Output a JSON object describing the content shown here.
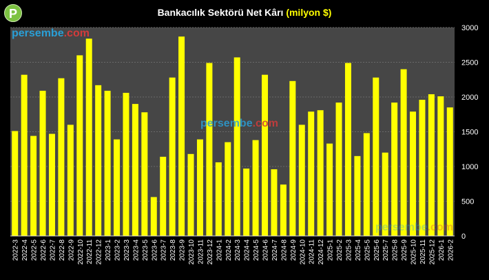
{
  "logo_letter": "P",
  "watermark": {
    "part1": "persembe",
    "part2": ".com"
  },
  "chart_data": {
    "type": "bar",
    "title": "Bankacılık Sektörü Net Kârı",
    "title_unit": "(milyon $)",
    "xlabel": "",
    "ylabel": "",
    "ylim": [
      0,
      3000
    ],
    "yticks": [
      0,
      500,
      1000,
      1500,
      2000,
      2500,
      3000
    ],
    "grid": true,
    "y_axis_position": "right",
    "bar_color": "#ffff00",
    "plot_background": "#464646",
    "categories": [
      "2022-3",
      "2022-4",
      "2022-5",
      "2022-6",
      "2022-7",
      "2022-8",
      "2022-9",
      "2022-10",
      "2022-11",
      "2022-12",
      "2023-1",
      "2023-2",
      "2023-3",
      "2023-4",
      "2023-5",
      "2023-6",
      "2023-7",
      "2023-8",
      "2023-9",
      "2023-10",
      "2023-11",
      "2023-12",
      "2024-1",
      "2024-2",
      "2024-3",
      "2024-4",
      "2024-5",
      "2024-6",
      "2024-7",
      "2024-8",
      "2024-9",
      "2024-10",
      "2024-11",
      "2024-12",
      "2025-1",
      "2025-2",
      "2025-3",
      "2025-4",
      "2025-5",
      "2025-6",
      "2025-7",
      "2025-8",
      "2025-9",
      "2025-10",
      "2025-11",
      "2025-12",
      "2026-1",
      "2026-2"
    ],
    "values": [
      1510,
      2320,
      1440,
      2090,
      1470,
      2270,
      1600,
      2600,
      2840,
      2170,
      2090,
      1390,
      2060,
      1900,
      1780,
      560,
      1140,
      2280,
      2870,
      1180,
      1390,
      2490,
      1060,
      1350,
      2570,
      970,
      1380,
      2320,
      960,
      740,
      2230,
      1600,
      1790,
      1810,
      1330,
      1920,
      2490,
      1150,
      1480,
      2280,
      1200,
      1920,
      2400,
      1790,
      1960,
      2040,
      2010,
      1850
    ]
  }
}
